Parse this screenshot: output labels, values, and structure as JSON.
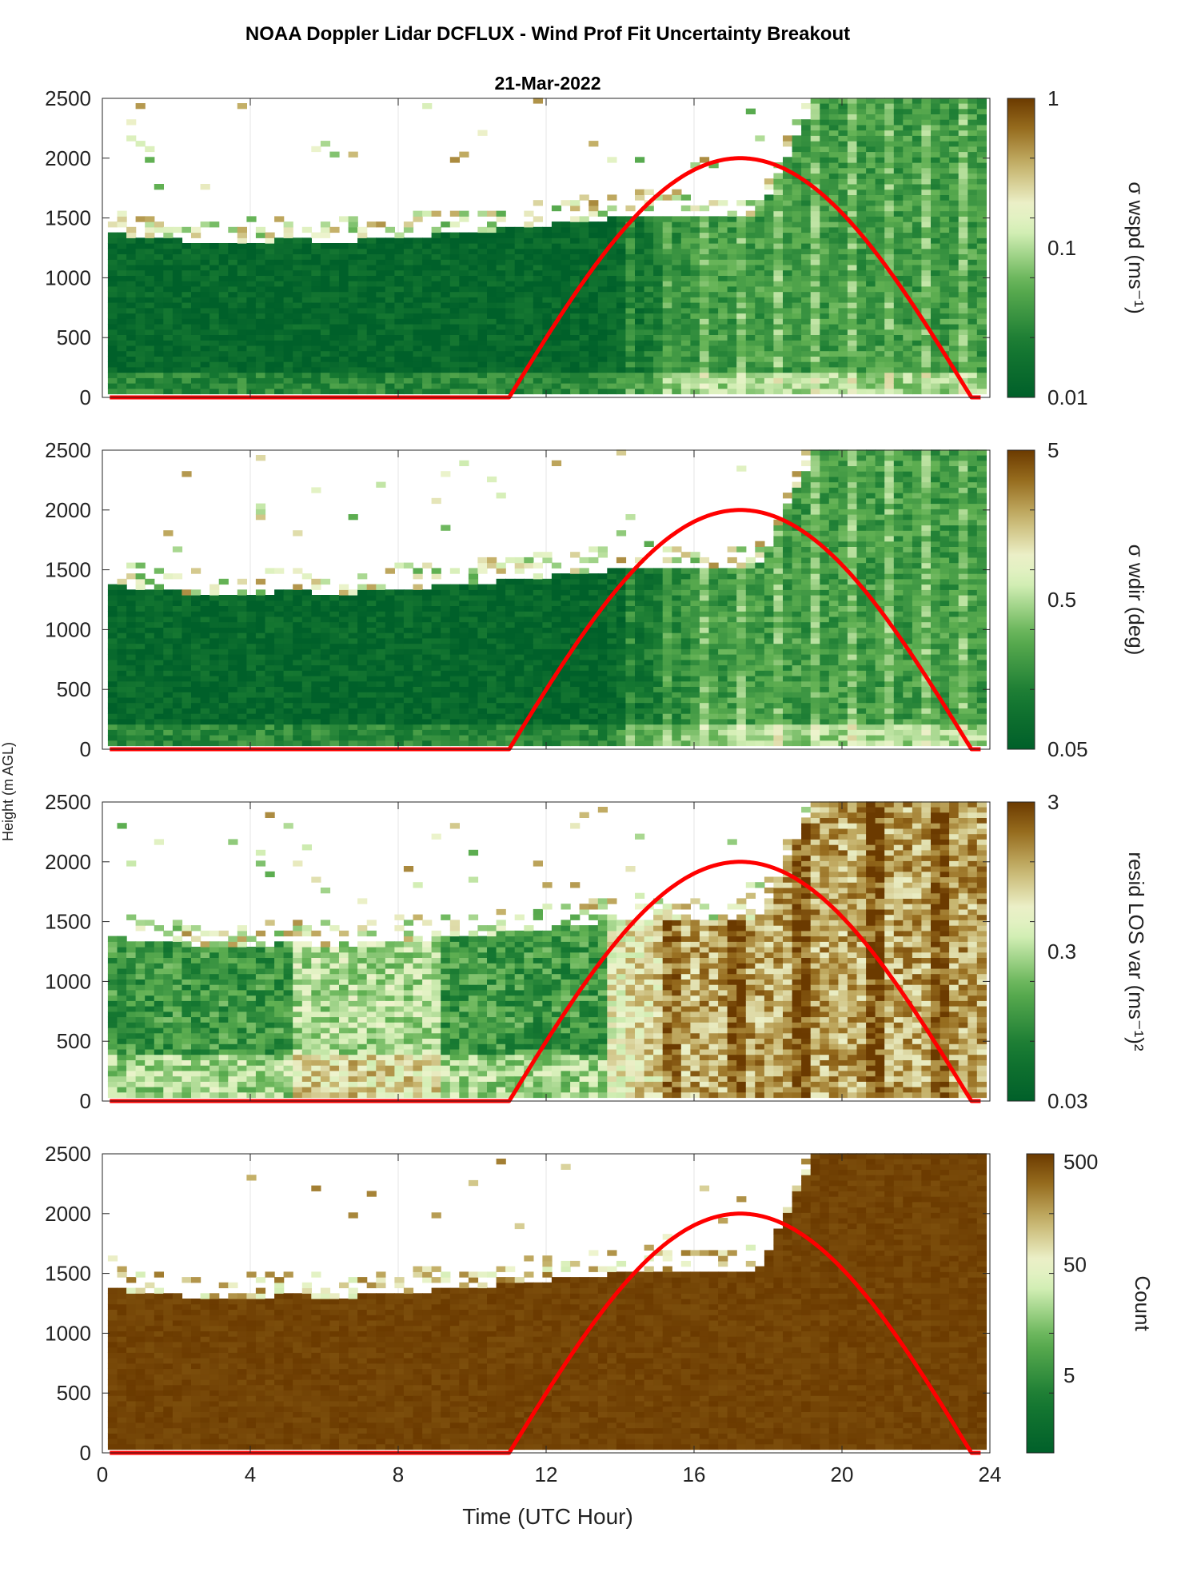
{
  "figure": {
    "title": "NOAA Doppler Lidar DCFLUX - Wind Prof Fit Uncertainty Breakout",
    "subtitle": "21-Mar-2022",
    "shared_ylabel": "Height (m AGL)",
    "shared_xlabel": "Time (UTC Hour)"
  },
  "colors": {
    "low": "#00602a",
    "mid_light": "#e8f8d8",
    "high": "#6b3a00",
    "overlay_curve": "#ff0000",
    "grid": "#e6e6e6"
  },
  "chart_data": [
    {
      "type": "heatmap",
      "title": "",
      "xlabel": "",
      "ylabel": "",
      "colorbar_label": "σ wspd (ms⁻¹)",
      "color_scale": "log",
      "clim": [
        0.01,
        1
      ],
      "colorbar_ticks": [
        "0.01",
        "0.1",
        "1"
      ],
      "xlim": [
        0,
        24
      ],
      "ylim": [
        0,
        2500
      ],
      "x_ticks": [
        0,
        4,
        8,
        12,
        16,
        20,
        24
      ],
      "y_ticks": [
        0,
        500,
        1000,
        1500,
        2000,
        2500
      ],
      "grid": true,
      "mixed_layer_top_m": [
        1350,
        1300,
        1250,
        1300,
        1280,
        1320,
        1350,
        1400,
        1450,
        1500,
        1480,
        1500,
        2500,
        2500,
        2500,
        2500
      ],
      "overlay": {
        "name": "",
        "peak_hour": 17.25,
        "peak_height_m": 2000,
        "rise_hour": 11.0,
        "set_hour": 23.5
      }
    },
    {
      "type": "heatmap",
      "title": "",
      "xlabel": "",
      "ylabel": "",
      "colorbar_label": "σ wdir (deg)",
      "color_scale": "log",
      "clim": [
        0.05,
        5
      ],
      "colorbar_ticks": [
        "0.05",
        "0.5",
        "5"
      ],
      "xlim": [
        0,
        24
      ],
      "ylim": [
        0,
        2500
      ],
      "x_ticks": [
        0,
        4,
        8,
        12,
        16,
        20,
        24
      ],
      "y_ticks": [
        0,
        500,
        1000,
        1500,
        2000,
        2500
      ],
      "grid": true,
      "mixed_layer_top_m": [
        1350,
        1300,
        1250,
        1300,
        1280,
        1320,
        1350,
        1400,
        1450,
        1500,
        1480,
        1500,
        2500,
        2500,
        2500,
        2500
      ],
      "overlay": {
        "name": "",
        "peak_hour": 17.25,
        "peak_height_m": 2000,
        "rise_hour": 11.0,
        "set_hour": 23.5
      }
    },
    {
      "type": "heatmap",
      "title": "",
      "xlabel": "",
      "ylabel": "",
      "colorbar_label": "resid LOS var (ms⁻¹)²",
      "color_scale": "log",
      "clim": [
        0.03,
        3
      ],
      "colorbar_ticks": [
        "0.03",
        "0.3",
        "3"
      ],
      "xlim": [
        0,
        24
      ],
      "ylim": [
        0,
        2500
      ],
      "x_ticks": [
        0,
        4,
        8,
        12,
        16,
        20,
        24
      ],
      "y_ticks": [
        0,
        500,
        1000,
        1500,
        2000,
        2500
      ],
      "grid": true,
      "mixed_layer_top_m": [
        1350,
        1300,
        1250,
        1300,
        1280,
        1320,
        1350,
        1400,
        1450,
        1500,
        1480,
        1500,
        2500,
        2500,
        2500,
        2500
      ],
      "overlay": {
        "name": "",
        "peak_hour": 17.25,
        "peak_height_m": 2000,
        "rise_hour": 11.0,
        "set_hour": 23.5
      }
    },
    {
      "type": "heatmap",
      "title": "",
      "xlabel": "Time (UTC Hour)",
      "ylabel": "",
      "colorbar_label": "Count",
      "color_scale": "log",
      "clim": [
        1,
        500
      ],
      "colorbar_ticks": [
        "5",
        "50",
        "500"
      ],
      "xlim": [
        0,
        24
      ],
      "ylim": [
        0,
        2500
      ],
      "x_ticks": [
        0,
        4,
        8,
        12,
        16,
        20,
        24
      ],
      "y_ticks": [
        0,
        500,
        1000,
        1500,
        2000,
        2500
      ],
      "grid": true,
      "mixed_layer_top_m": [
        1350,
        1300,
        1250,
        1300,
        1280,
        1320,
        1350,
        1400,
        1450,
        1500,
        1480,
        1500,
        2500,
        2500,
        2500,
        2500
      ],
      "overlay": {
        "name": "",
        "peak_hour": 17.25,
        "peak_height_m": 2000,
        "rise_hour": 11.0,
        "set_hour": 23.5
      }
    }
  ]
}
